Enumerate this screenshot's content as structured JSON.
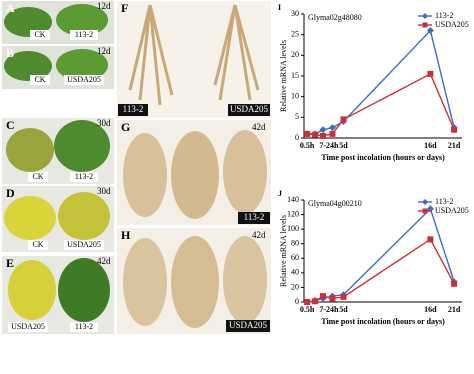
{
  "photos": {
    "A": {
      "letter": "A",
      "day": "12d",
      "labels": [
        "CK",
        "113-2"
      ]
    },
    "B": {
      "letter": "B",
      "day": "12d",
      "labels": [
        "CK",
        "USDA205"
      ]
    },
    "C": {
      "letter": "C",
      "day": "30d",
      "labels": [
        "CK",
        "113-2"
      ]
    },
    "D": {
      "letter": "D",
      "day": "30d",
      "labels": [
        "CK",
        "USDA205"
      ]
    },
    "E": {
      "letter": "E",
      "day": "42d",
      "labels": [
        "USDA205",
        "113-2"
      ]
    },
    "F": {
      "letter": "F",
      "labels": [
        "113-2",
        "USDA205"
      ]
    },
    "G": {
      "letter": "G",
      "day": "42d",
      "labels": [
        "113-2"
      ]
    },
    "H": {
      "letter": "H",
      "day": "42d",
      "labels": [
        "USDA205"
      ]
    }
  },
  "chart_data": [
    {
      "type": "line",
      "panel": "I",
      "title": "Glyma02g48080",
      "ylabel": "Relative mRNA levels",
      "xlabel": "Time post incolation (hours or days)",
      "categories": [
        "0.5h",
        null,
        "7-24h",
        null,
        "5d",
        "16d",
        "21d"
      ],
      "ylim": [
        0,
        30
      ],
      "yticks": [
        0,
        5,
        10,
        15,
        20,
        25,
        30
      ],
      "legend": "upper right",
      "series": [
        {
          "name": "113-2",
          "color": "#3a6fc4",
          "marker": "diamond",
          "values": [
            1,
            1,
            2,
            2.5,
            4,
            26,
            2.5
          ]
        },
        {
          "name": "USDA205",
          "color": "#c8303a",
          "marker": "square",
          "values": [
            1,
            0.8,
            0.5,
            1,
            4.5,
            15.5,
            2
          ]
        }
      ]
    },
    {
      "type": "line",
      "panel": "J",
      "title": "Glyma04g00210",
      "ylabel": "Relative mRNA levels",
      "xlabel": "Time post incolation (hours or days)",
      "categories": [
        "0.5h",
        null,
        "7-24h",
        null,
        "5d",
        "16d",
        "21d"
      ],
      "ylim": [
        0,
        140
      ],
      "yticks": [
        0,
        20,
        40,
        60,
        80,
        100,
        120,
        140
      ],
      "legend": "upper right",
      "series": [
        {
          "name": "113-2",
          "color": "#3a6fc4",
          "marker": "diamond",
          "values": [
            0,
            2,
            5,
            8,
            10,
            128,
            28
          ]
        },
        {
          "name": "USDA205",
          "color": "#c8303a",
          "marker": "square",
          "values": [
            0,
            1,
            8,
            5,
            7,
            86,
            25
          ]
        }
      ]
    }
  ]
}
